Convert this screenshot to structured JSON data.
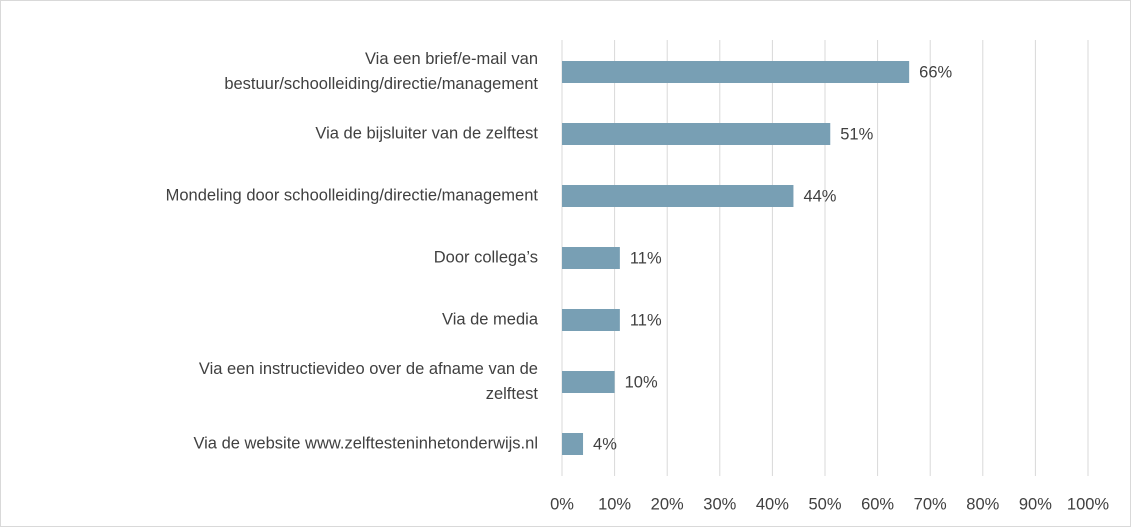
{
  "chart_data": {
    "type": "hbar",
    "categories": [
      [
        "Via een brief/e-mail van",
        "bestuur/schoolleiding/directie/management"
      ],
      [
        "Via de bijsluiter van de zelftest"
      ],
      [
        "Mondeling door schoolleiding/directie/management"
      ],
      [
        "Door collega’s"
      ],
      [
        "Via de media"
      ],
      [
        "Via een instructievideo over de afname van de",
        "zelftest"
      ],
      [
        "Via de website www.zelftesteninhetonderwijs.nl"
      ]
    ],
    "values": [
      66,
      51,
      44,
      11,
      11,
      10,
      4
    ],
    "value_labels": [
      "66%",
      "51%",
      "44%",
      "11%",
      "11%",
      "10%",
      "4%"
    ],
    "color": "#789fb4",
    "xlim": [
      0,
      100
    ],
    "xticks": [
      {
        "value": 0,
        "label": "0%"
      },
      {
        "value": 10,
        "label": "10%"
      },
      {
        "value": 20,
        "label": "20%"
      },
      {
        "value": 30,
        "label": "30%"
      },
      {
        "value": 40,
        "label": "40%"
      },
      {
        "value": 50,
        "label": "50%"
      },
      {
        "value": 60,
        "label": "60%"
      },
      {
        "value": 70,
        "label": "70%"
      },
      {
        "value": 80,
        "label": "80%"
      },
      {
        "value": 90,
        "label": "90%"
      },
      {
        "value": 100,
        "label": "100%"
      }
    ],
    "grid": true
  }
}
